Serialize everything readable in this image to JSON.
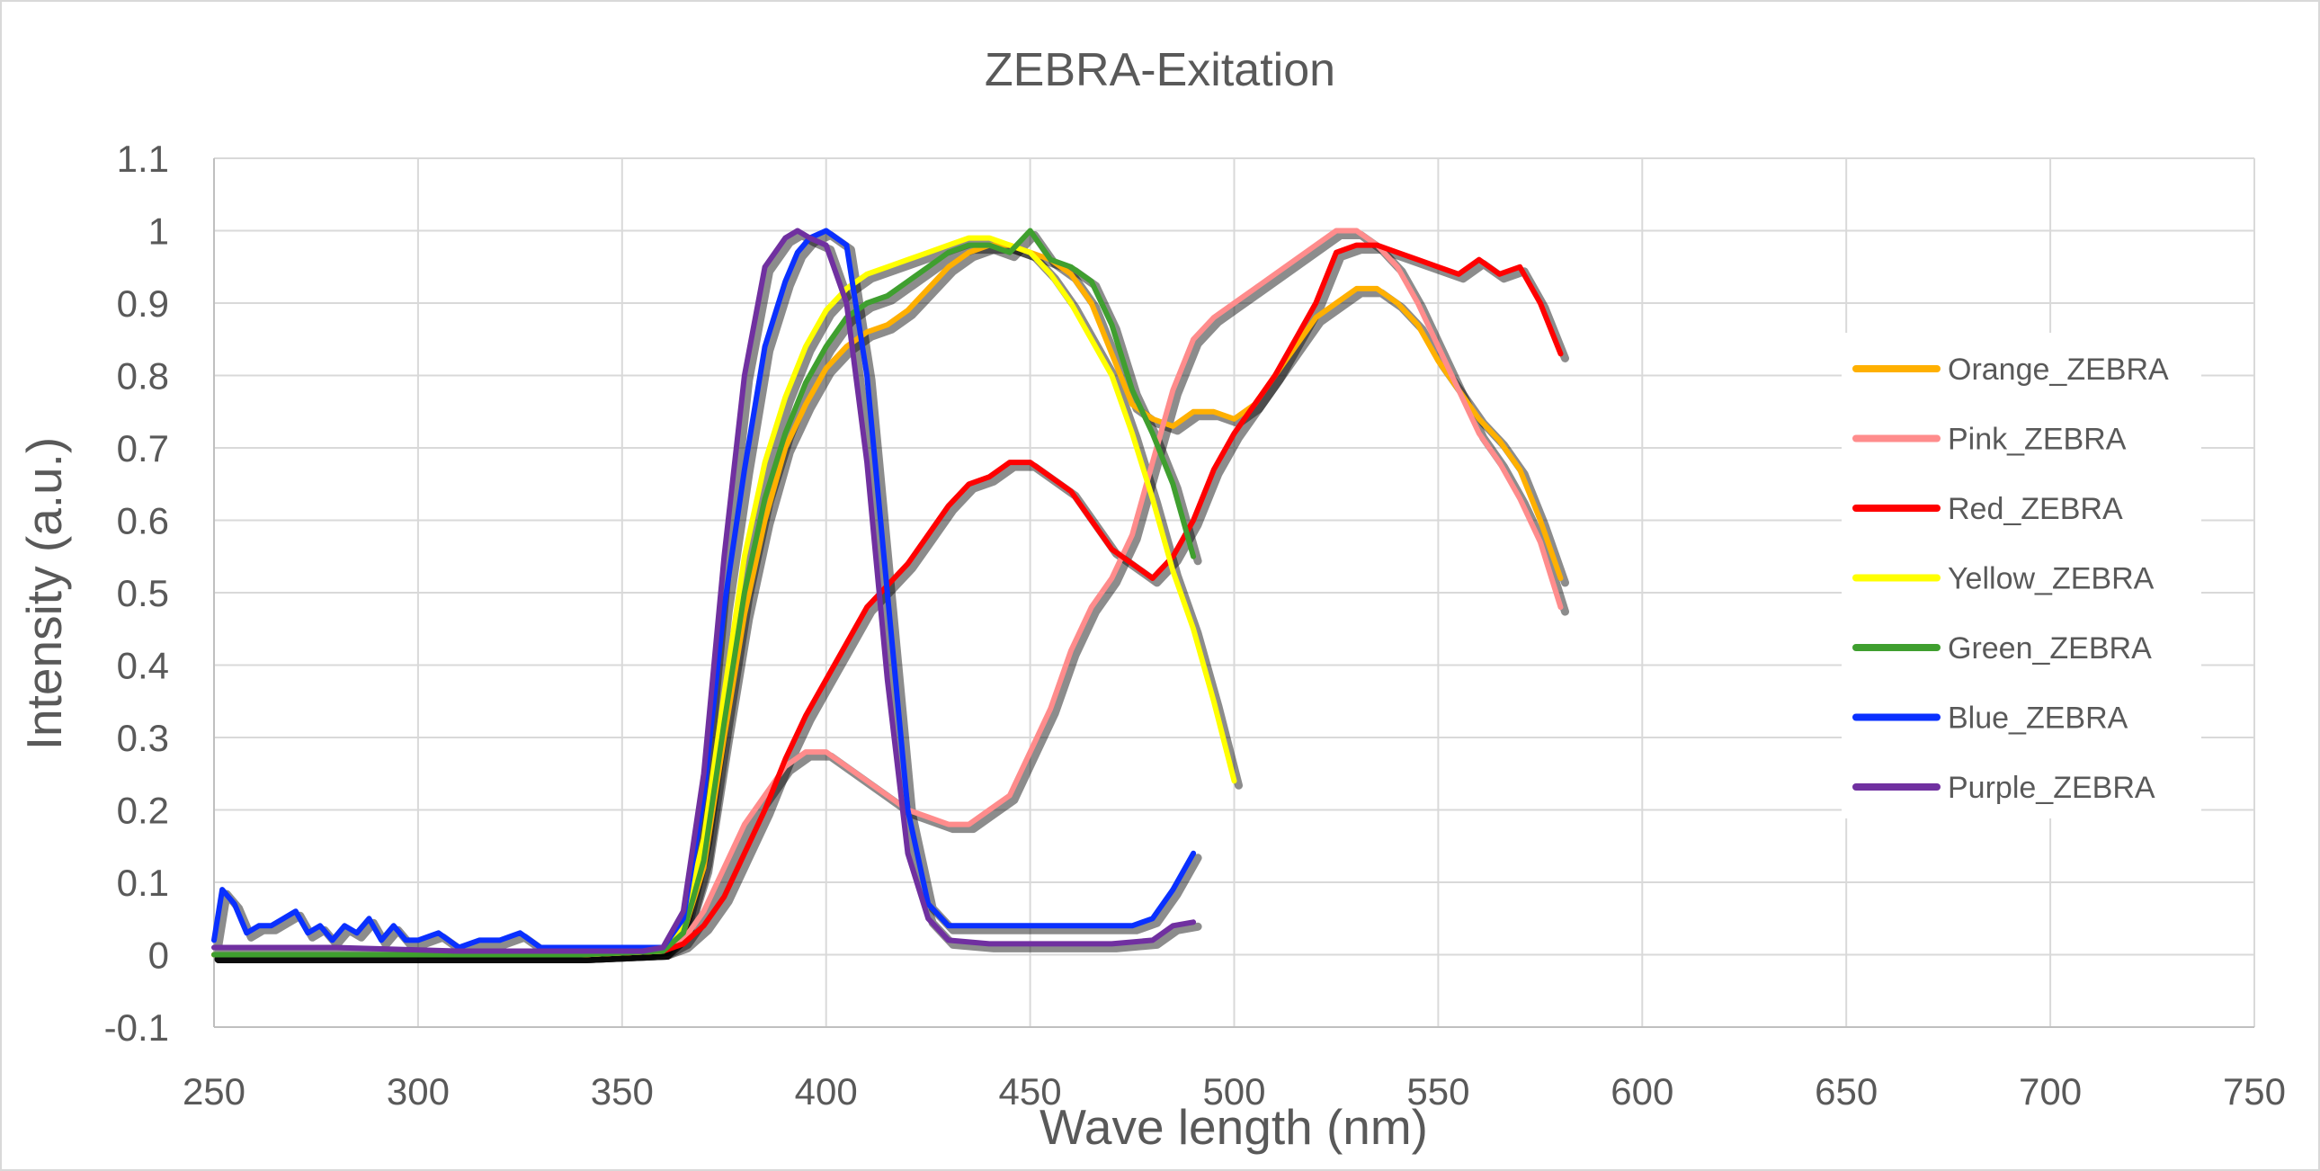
{
  "chart_data": {
    "type": "line",
    "title": "ZEBRA-Exitation",
    "xlabel": "Wave length (nm)",
    "ylabel": "Intensity (a.u.)",
    "xlim": [
      250,
      750
    ],
    "ylim": [
      -0.1,
      1.1
    ],
    "xticks": [
      250,
      300,
      350,
      400,
      450,
      500,
      550,
      600,
      650,
      700,
      750
    ],
    "yticks": [
      -0.1,
      0,
      0.1,
      0.2,
      0.3,
      0.4,
      0.5,
      0.6,
      0.7,
      0.8,
      0.9,
      1,
      1.1
    ],
    "ytick_labels": [
      "-0.1",
      "0",
      "0.1",
      "0.2",
      "0.3",
      "0.4",
      "0.5",
      "0.6",
      "0.7",
      "0.8",
      "0.9",
      "1",
      "1.1"
    ],
    "grid": true,
    "legend_position": "right",
    "series": [
      {
        "name": "Orange_ZEBRA",
        "color": "#FFB000",
        "x": [
          250,
          280,
          310,
          340,
          360,
          365,
          370,
          375,
          380,
          385,
          390,
          395,
          400,
          405,
          410,
          415,
          420,
          425,
          430,
          435,
          440,
          445,
          450,
          455,
          460,
          465,
          470,
          475,
          480,
          485,
          490,
          495,
          500,
          505,
          510,
          515,
          520,
          525,
          530,
          535,
          540,
          545,
          550,
          555,
          560,
          565,
          570,
          575,
          580
        ],
        "y": [
          0,
          0,
          0,
          0,
          0.005,
          0.03,
          0.12,
          0.3,
          0.47,
          0.6,
          0.7,
          0.76,
          0.81,
          0.84,
          0.86,
          0.87,
          0.89,
          0.92,
          0.95,
          0.97,
          0.98,
          0.98,
          0.97,
          0.96,
          0.94,
          0.9,
          0.83,
          0.76,
          0.74,
          0.73,
          0.75,
          0.75,
          0.74,
          0.76,
          0.8,
          0.84,
          0.88,
          0.9,
          0.92,
          0.92,
          0.9,
          0.87,
          0.82,
          0.78,
          0.74,
          0.71,
          0.67,
          0.6,
          0.52
        ]
      },
      {
        "name": "Pink_ZEBRA",
        "color": "#FF8C8C",
        "x": [
          250,
          280,
          310,
          340,
          360,
          365,
          370,
          375,
          380,
          385,
          390,
          395,
          400,
          405,
          410,
          415,
          420,
          425,
          430,
          435,
          440,
          445,
          450,
          455,
          460,
          465,
          470,
          475,
          480,
          485,
          490,
          495,
          500,
          505,
          510,
          515,
          520,
          525,
          530,
          535,
          540,
          545,
          550,
          555,
          560,
          565,
          570,
          575,
          580
        ],
        "y": [
          0,
          0,
          0,
          0,
          0.005,
          0.02,
          0.06,
          0.12,
          0.18,
          0.22,
          0.26,
          0.28,
          0.28,
          0.26,
          0.24,
          0.22,
          0.2,
          0.19,
          0.18,
          0.18,
          0.2,
          0.22,
          0.28,
          0.34,
          0.42,
          0.48,
          0.52,
          0.58,
          0.68,
          0.78,
          0.85,
          0.88,
          0.9,
          0.92,
          0.94,
          0.96,
          0.98,
          1.0,
          1.0,
          0.98,
          0.95,
          0.9,
          0.84,
          0.78,
          0.72,
          0.68,
          0.63,
          0.57,
          0.48
        ]
      },
      {
        "name": "Red_ZEBRA",
        "color": "#FF0000",
        "x": [
          250,
          280,
          310,
          340,
          360,
          365,
          370,
          375,
          380,
          385,
          390,
          395,
          400,
          405,
          410,
          415,
          420,
          425,
          430,
          435,
          440,
          445,
          450,
          455,
          460,
          465,
          470,
          475,
          480,
          485,
          490,
          495,
          500,
          505,
          510,
          515,
          520,
          525,
          530,
          535,
          540,
          545,
          550,
          555,
          560,
          565,
          570,
          575,
          580
        ],
        "y": [
          0,
          0,
          0,
          0,
          0.005,
          0.015,
          0.04,
          0.08,
          0.14,
          0.2,
          0.27,
          0.33,
          0.38,
          0.43,
          0.48,
          0.51,
          0.54,
          0.58,
          0.62,
          0.65,
          0.66,
          0.68,
          0.68,
          0.66,
          0.64,
          0.6,
          0.56,
          0.54,
          0.52,
          0.55,
          0.6,
          0.67,
          0.72,
          0.76,
          0.8,
          0.85,
          0.9,
          0.97,
          0.98,
          0.98,
          0.97,
          0.96,
          0.95,
          0.94,
          0.96,
          0.94,
          0.95,
          0.9,
          0.83
        ]
      },
      {
        "name": "Yellow_ZEBRA",
        "color": "#FFFF00",
        "x": [
          250,
          280,
          310,
          340,
          360,
          365,
          370,
          375,
          380,
          385,
          390,
          395,
          400,
          405,
          410,
          415,
          420,
          425,
          430,
          435,
          440,
          445,
          450,
          455,
          460,
          465,
          470,
          475,
          480,
          485,
          490,
          495,
          500
        ],
        "y": [
          0,
          0,
          0,
          0,
          0.005,
          0.04,
          0.16,
          0.36,
          0.55,
          0.68,
          0.77,
          0.84,
          0.89,
          0.92,
          0.94,
          0.95,
          0.96,
          0.97,
          0.98,
          0.99,
          0.99,
          0.98,
          0.97,
          0.94,
          0.9,
          0.85,
          0.8,
          0.72,
          0.63,
          0.53,
          0.45,
          0.35,
          0.24
        ]
      },
      {
        "name": "Green_ZEBRA",
        "color": "#3F9F2F",
        "x": [
          250,
          280,
          310,
          340,
          360,
          365,
          370,
          375,
          380,
          385,
          390,
          395,
          400,
          405,
          410,
          415,
          420,
          425,
          430,
          435,
          440,
          445,
          450,
          455,
          460,
          465,
          470,
          475,
          480,
          485,
          490
        ],
        "y": [
          0,
          0,
          0,
          0,
          0.005,
          0.03,
          0.13,
          0.32,
          0.5,
          0.63,
          0.72,
          0.79,
          0.84,
          0.88,
          0.9,
          0.91,
          0.93,
          0.95,
          0.97,
          0.98,
          0.98,
          0.97,
          1.0,
          0.96,
          0.95,
          0.93,
          0.87,
          0.78,
          0.72,
          0.65,
          0.55
        ]
      },
      {
        "name": "Blue_ZEBRA",
        "color": "#0A30FF",
        "x": [
          250,
          252,
          255,
          258,
          261,
          264,
          267,
          270,
          273,
          276,
          279,
          282,
          285,
          288,
          291,
          294,
          297,
          300,
          305,
          310,
          315,
          320,
          325,
          330,
          340,
          350,
          360,
          365,
          370,
          375,
          380,
          385,
          390,
          393,
          396,
          400,
          405,
          410,
          415,
          420,
          425,
          430,
          440,
          450,
          460,
          470,
          475,
          480,
          485,
          490
        ],
        "y": [
          0.02,
          0.09,
          0.07,
          0.03,
          0.04,
          0.04,
          0.05,
          0.06,
          0.03,
          0.04,
          0.02,
          0.04,
          0.03,
          0.05,
          0.02,
          0.04,
          0.02,
          0.02,
          0.03,
          0.01,
          0.02,
          0.02,
          0.03,
          0.01,
          0.01,
          0.01,
          0.01,
          0.05,
          0.22,
          0.48,
          0.67,
          0.84,
          0.93,
          0.97,
          0.99,
          1.0,
          0.98,
          0.8,
          0.5,
          0.2,
          0.07,
          0.04,
          0.04,
          0.04,
          0.04,
          0.04,
          0.04,
          0.05,
          0.09,
          0.14
        ]
      },
      {
        "name": "Purple_ZEBRA",
        "color": "#7030A0",
        "x": [
          250,
          280,
          310,
          340,
          355,
          360,
          365,
          370,
          375,
          380,
          385,
          390,
          393,
          396,
          400,
          405,
          410,
          415,
          420,
          425,
          430,
          440,
          450,
          460,
          470,
          480,
          485,
          490
        ],
        "y": [
          0.01,
          0.01,
          0.005,
          0.005,
          0.005,
          0.01,
          0.06,
          0.25,
          0.55,
          0.8,
          0.95,
          0.99,
          1.0,
          0.99,
          0.98,
          0.9,
          0.68,
          0.38,
          0.14,
          0.05,
          0.02,
          0.015,
          0.015,
          0.015,
          0.015,
          0.02,
          0.04,
          0.045
        ]
      }
    ]
  }
}
